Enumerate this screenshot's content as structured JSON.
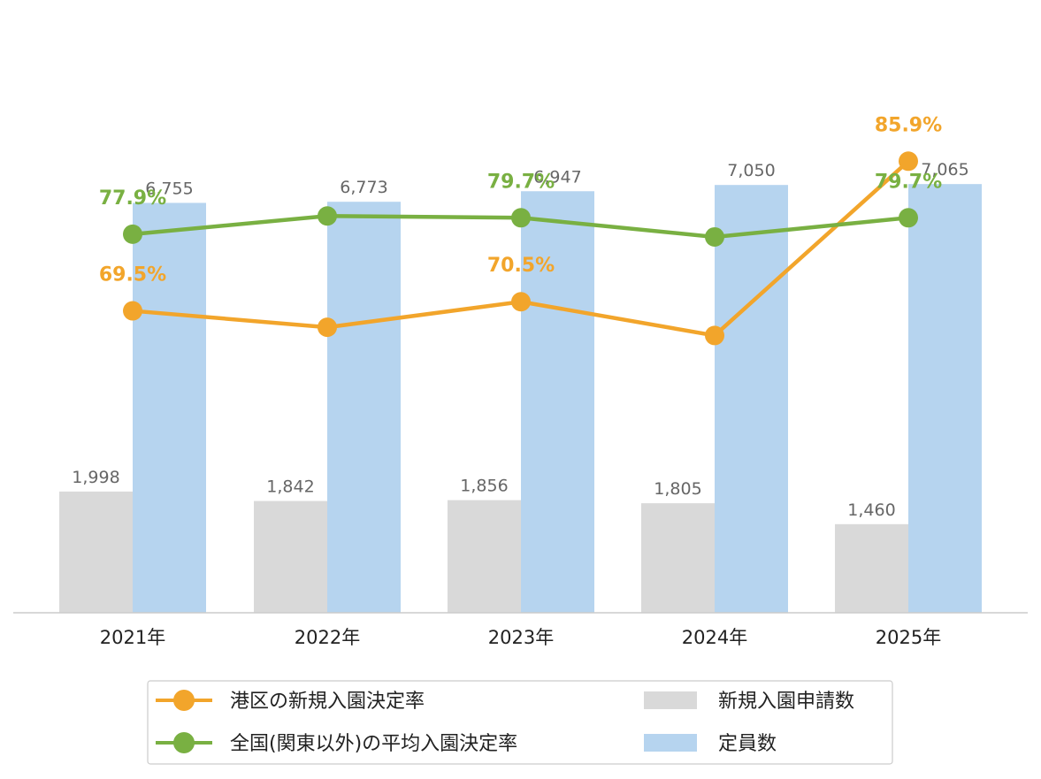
{
  "chart_data": {
    "type": "bar",
    "categories": [
      "2021年",
      "2022年",
      "2023年",
      "2024年",
      "2025年"
    ],
    "series": [
      {
        "name": "新規入園申請数",
        "kind": "bar",
        "axis": "left",
        "color": "#d9d9d9",
        "values": [
          1998,
          1842,
          1856,
          1805,
          1460
        ],
        "labels": [
          "1,998",
          "1,842",
          "1,856",
          "1,805",
          "1,460"
        ]
      },
      {
        "name": "定員数",
        "kind": "bar",
        "axis": "left",
        "color": "#b6d4ef",
        "values": [
          6755,
          6773,
          6947,
          7050,
          7065
        ],
        "labels": [
          "6,755",
          "6,773",
          "6,947",
          "7,050",
          "7,065"
        ]
      },
      {
        "name": "港区の新規入園決定率",
        "kind": "line",
        "axis": "right",
        "color": "#f2a52b",
        "values": [
          69.5,
          67.7,
          70.5,
          66.8,
          85.9
        ],
        "labels": [
          "69.5%",
          "",
          "70.5%",
          "",
          "85.9%"
        ]
      },
      {
        "name": "全国(関東以外)の平均入園決定率",
        "kind": "line",
        "axis": "right",
        "color": "#79b042",
        "values": [
          77.9,
          79.9,
          79.7,
          77.6,
          79.7
        ],
        "labels": [
          "77.9%",
          "",
          "79.7%",
          "",
          "79.7%"
        ]
      }
    ],
    "y_left_range": [
      0,
      8000
    ],
    "y_right_range": [
      40,
      90
    ],
    "grid": false,
    "legend_position": "bottom"
  },
  "legend": {
    "line1": "港区の新規入園決定率",
    "line2": "全国(関東以外)の平均入園決定率",
    "bar1": "新規入園申請数",
    "bar2": "定員数"
  }
}
